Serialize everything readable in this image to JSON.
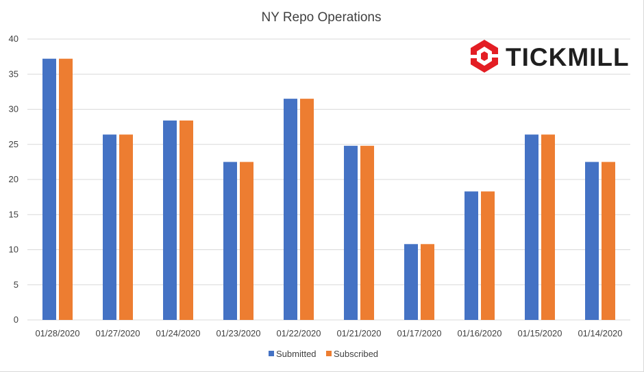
{
  "chart_data": {
    "type": "bar",
    "title": "NY Repo Operations",
    "xlabel": "",
    "ylabel": "",
    "categories": [
      "01/28/2020",
      "01/27/2020",
      "01/24/2020",
      "01/23/2020",
      "01/22/2020",
      "01/21/2020",
      "01/17/2020",
      "01/16/2020",
      "01/15/2020",
      "01/14/2020"
    ],
    "series": [
      {
        "name": "Submitted",
        "color": "#4472c4",
        "values": [
          37.2,
          26.4,
          28.4,
          22.5,
          31.5,
          24.8,
          10.8,
          18.3,
          26.4,
          22.5
        ]
      },
      {
        "name": "Subscribed",
        "color": "#ed7d31",
        "values": [
          37.2,
          26.4,
          28.4,
          22.5,
          31.5,
          24.8,
          10.8,
          18.3,
          26.4,
          22.5
        ]
      }
    ],
    "ylim": [
      0,
      40
    ],
    "yticks": [
      0,
      5,
      10,
      15,
      20,
      25,
      30,
      35,
      40
    ],
    "grid": true,
    "legend_position": "bottom"
  },
  "logo": {
    "text": "TICKMILL",
    "icon": "tickmill-hexagon-logo-icon",
    "icon_color": "#e31e24"
  },
  "colors": {
    "grid": "#d9d9d9",
    "text": "#404040"
  }
}
